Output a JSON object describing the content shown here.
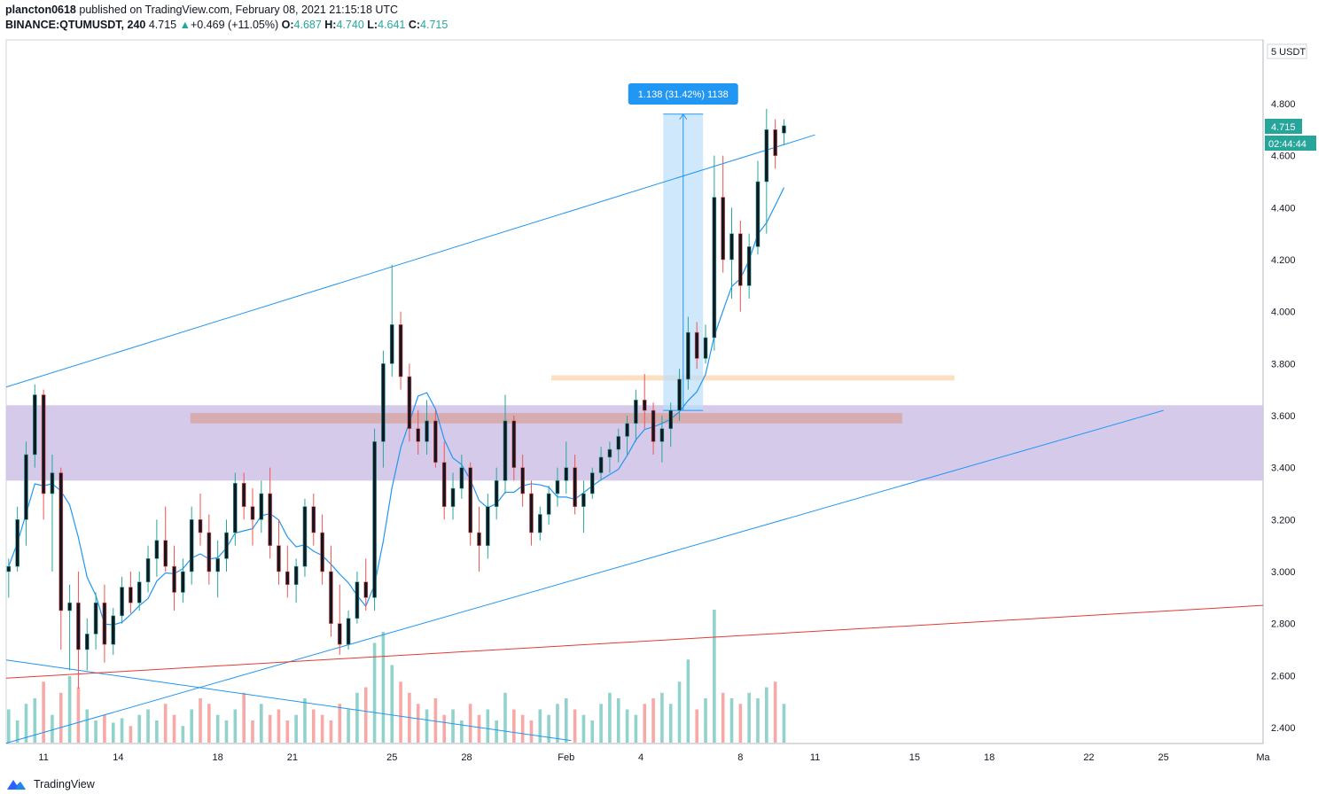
{
  "header": {
    "author": "plancton0618",
    "published_text": "published on TradingView.com, February 08, 2021 21:15:18 UTC",
    "symbol": "BINANCE:QTUMUSDT, 240",
    "last": "4.715",
    "change_arrow": "▲",
    "change": "+0.469 (+11.05%)",
    "o_label": "O:",
    "o_value": "4.687",
    "h_label": "H:",
    "h_value": "4.740",
    "l_label": "L:",
    "l_value": "4.641",
    "c_label": "C:",
    "c_value": "4.715"
  },
  "footer": {
    "brand": "TradingView",
    "logo_icon": "tradingview-logo-icon"
  },
  "colors": {
    "up": "#26a69a",
    "down": "#ef5350",
    "ma": "#2196f3",
    "trendline": "#2196f3",
    "support_line": "#e53935",
    "zone": "#d1c4e9",
    "resistance_band": "#d7a7a7",
    "level_band": "#fbe1c2",
    "measure": "#bbdefb",
    "badge_blue": "#2196f3"
  },
  "chart_data": {
    "type": "candlestick",
    "timeframe": "240",
    "y_axis": {
      "unit_label": "5 USDT",
      "ticks": [
        "4.800",
        "4.600",
        "4.400",
        "4.200",
        "4.000",
        "3.800",
        "3.600",
        "3.400",
        "3.200",
        "3.000",
        "2.800",
        "2.600",
        "2.400"
      ],
      "ylim": [
        2.35,
        5.0
      ]
    },
    "x_axis": {
      "ticks": [
        {
          "label": "11",
          "day": 11
        },
        {
          "label": "14",
          "day": 14
        },
        {
          "label": "18",
          "day": 18
        },
        {
          "label": "21",
          "day": 21
        },
        {
          "label": "25",
          "day": 25
        },
        {
          "label": "28",
          "day": 28
        },
        {
          "label": "Feb",
          "day": 32
        },
        {
          "label": "4",
          "day": 35
        },
        {
          "label": "8",
          "day": 39
        },
        {
          "label": "11",
          "day": 42
        },
        {
          "label": "15",
          "day": 46
        },
        {
          "label": "18",
          "day": 49
        },
        {
          "label": "22",
          "day": 53
        },
        {
          "label": "25",
          "day": 56
        },
        {
          "label": "Ma",
          "day": 60
        }
      ],
      "range_days": [
        9.5,
        60
      ]
    },
    "price_badge": "4.715",
    "countdown_badge": "02:44:44",
    "measure": {
      "label": "1.138 (31.42%) 1138",
      "from_price": 3.62,
      "to_price": 4.76,
      "start_day": 35.9,
      "end_day": 37.5
    },
    "zones": [
      {
        "name": "purple-zone",
        "from": 3.35,
        "to": 3.64,
        "start_day": 9.5,
        "end_day": 60
      },
      {
        "name": "red-band",
        "from": 3.57,
        "to": 3.61,
        "start_day": 16.9,
        "end_day": 45.5
      },
      {
        "name": "orange-band",
        "from": 3.735,
        "to": 3.755,
        "start_day": 31.4,
        "end_day": 47.6
      }
    ],
    "trendlines": [
      {
        "name": "upper-channel",
        "color_key": "trendline",
        "p1": [
          9.5,
          3.71
        ],
        "p2": [
          42.0,
          4.68
        ]
      },
      {
        "name": "lower-channel",
        "color_key": "trendline",
        "p1": [
          9.5,
          2.34
        ],
        "p2": [
          56.0,
          3.62
        ]
      },
      {
        "name": "descending-line",
        "color_key": "trendline",
        "p1": [
          9.5,
          2.66
        ],
        "p2": [
          32.2,
          2.35
        ]
      },
      {
        "name": "support-line",
        "color_key": "support_line",
        "p1": [
          9.5,
          2.59
        ],
        "p2": [
          60.0,
          2.87
        ]
      }
    ],
    "candles": [
      [
        3.0,
        3.05,
        2.9,
        3.02
      ],
      [
        3.02,
        3.25,
        3.0,
        3.2
      ],
      [
        3.2,
        3.5,
        3.1,
        3.45
      ],
      [
        3.45,
        3.72,
        3.4,
        3.68
      ],
      [
        3.68,
        3.7,
        3.2,
        3.3
      ],
      [
        3.3,
        3.45,
        3.0,
        3.38
      ],
      [
        3.38,
        3.4,
        2.7,
        2.85
      ],
      [
        2.85,
        2.95,
        2.62,
        2.88
      ],
      [
        2.88,
        3.0,
        2.55,
        2.7
      ],
      [
        2.7,
        2.82,
        2.62,
        2.76
      ],
      [
        2.76,
        2.92,
        2.7,
        2.88
      ],
      [
        2.88,
        2.95,
        2.65,
        2.72
      ],
      [
        2.72,
        2.86,
        2.68,
        2.83
      ],
      [
        2.83,
        2.98,
        2.8,
        2.94
      ],
      [
        2.94,
        3.0,
        2.84,
        2.88
      ],
      [
        2.88,
        3.0,
        2.85,
        2.96
      ],
      [
        2.96,
        3.1,
        2.92,
        3.05
      ],
      [
        3.05,
        3.2,
        2.98,
        3.12
      ],
      [
        3.12,
        3.25,
        3.0,
        3.02
      ],
      [
        3.02,
        3.1,
        2.85,
        2.92
      ],
      [
        2.92,
        3.05,
        2.88,
        3.0
      ],
      [
        3.0,
        3.25,
        2.95,
        3.2
      ],
      [
        3.2,
        3.3,
        3.1,
        3.15
      ],
      [
        3.15,
        3.22,
        2.95,
        3.0
      ],
      [
        3.0,
        3.12,
        2.9,
        3.05
      ],
      [
        3.05,
        3.2,
        3.0,
        3.15
      ],
      [
        3.15,
        3.38,
        3.1,
        3.34
      ],
      [
        3.34,
        3.38,
        3.2,
        3.25
      ],
      [
        3.25,
        3.32,
        3.1,
        3.2
      ],
      [
        3.2,
        3.35,
        3.15,
        3.3
      ],
      [
        3.3,
        3.4,
        3.05,
        3.1
      ],
      [
        3.1,
        3.2,
        2.95,
        3.0
      ],
      [
        3.0,
        3.1,
        2.9,
        2.95
      ],
      [
        2.95,
        3.05,
        2.88,
        3.02
      ],
      [
        3.02,
        3.28,
        2.98,
        3.25
      ],
      [
        3.25,
        3.3,
        3.1,
        3.15
      ],
      [
        3.15,
        3.22,
        2.95,
        3.0
      ],
      [
        3.0,
        3.1,
        2.75,
        2.8
      ],
      [
        2.8,
        2.95,
        2.68,
        2.72
      ],
      [
        2.72,
        2.85,
        2.7,
        2.82
      ],
      [
        2.82,
        3.0,
        2.8,
        2.96
      ],
      [
        2.96,
        3.05,
        2.85,
        2.9
      ],
      [
        2.9,
        3.55,
        2.85,
        3.5
      ],
      [
        3.5,
        3.85,
        3.4,
        3.8
      ],
      [
        3.8,
        4.18,
        3.75,
        3.95
      ],
      [
        3.95,
        4.0,
        3.7,
        3.75
      ],
      [
        3.75,
        3.8,
        3.5,
        3.55
      ],
      [
        3.55,
        3.62,
        3.45,
        3.5
      ],
      [
        3.5,
        3.66,
        3.45,
        3.58
      ],
      [
        3.58,
        3.62,
        3.4,
        3.42
      ],
      [
        3.42,
        3.5,
        3.2,
        3.25
      ],
      [
        3.25,
        3.38,
        3.2,
        3.32
      ],
      [
        3.32,
        3.45,
        3.28,
        3.4
      ],
      [
        3.4,
        3.42,
        3.1,
        3.15
      ],
      [
        3.15,
        3.25,
        3.0,
        3.1
      ],
      [
        3.1,
        3.3,
        3.05,
        3.25
      ],
      [
        3.25,
        3.4,
        3.2,
        3.35
      ],
      [
        3.35,
        3.68,
        3.3,
        3.58
      ],
      [
        3.58,
        3.6,
        3.35,
        3.4
      ],
      [
        3.4,
        3.45,
        3.25,
        3.3
      ],
      [
        3.3,
        3.35,
        3.1,
        3.15
      ],
      [
        3.15,
        3.25,
        3.12,
        3.22
      ],
      [
        3.22,
        3.33,
        3.18,
        3.3
      ],
      [
        3.3,
        3.4,
        3.25,
        3.35
      ],
      [
        3.35,
        3.5,
        3.3,
        3.4
      ],
      [
        3.4,
        3.45,
        3.22,
        3.25
      ],
      [
        3.25,
        3.35,
        3.15,
        3.3
      ],
      [
        3.3,
        3.4,
        3.28,
        3.38
      ],
      [
        3.38,
        3.48,
        3.35,
        3.44
      ],
      [
        3.44,
        3.5,
        3.38,
        3.47
      ],
      [
        3.47,
        3.55,
        3.42,
        3.52
      ],
      [
        3.52,
        3.6,
        3.45,
        3.57
      ],
      [
        3.57,
        3.7,
        3.5,
        3.66
      ],
      [
        3.66,
        3.76,
        3.55,
        3.62
      ],
      [
        3.62,
        3.65,
        3.45,
        3.5
      ],
      [
        3.5,
        3.6,
        3.42,
        3.55
      ],
      [
        3.55,
        3.65,
        3.48,
        3.62
      ],
      [
        3.62,
        3.78,
        3.58,
        3.74
      ],
      [
        3.74,
        3.98,
        3.7,
        3.92
      ],
      [
        3.92,
        3.96,
        3.78,
        3.82
      ],
      [
        3.82,
        3.95,
        3.8,
        3.9
      ],
      [
        3.9,
        4.6,
        3.85,
        4.44
      ],
      [
        4.44,
        4.6,
        4.15,
        4.2
      ],
      [
        4.2,
        4.4,
        4.05,
        4.3
      ],
      [
        4.3,
        4.35,
        4.0,
        4.1
      ],
      [
        4.1,
        4.3,
        4.05,
        4.25
      ],
      [
        4.25,
        4.58,
        4.22,
        4.5
      ],
      [
        4.5,
        4.78,
        4.3,
        4.7
      ],
      [
        4.7,
        4.74,
        4.55,
        4.6
      ],
      [
        4.687,
        4.74,
        4.641,
        4.715
      ]
    ],
    "candle_time": {
      "first_day": 9.6,
      "step_days": 0.35
    },
    "volume_scale": 100,
    "volumes": [
      30,
      20,
      35,
      40,
      55,
      25,
      45,
      60,
      50,
      30,
      20,
      25,
      18,
      22,
      15,
      25,
      30,
      20,
      35,
      25,
      15,
      30,
      40,
      35,
      25,
      20,
      30,
      45,
      20,
      35,
      25,
      30,
      20,
      25,
      40,
      30,
      25,
      20,
      35,
      30,
      45,
      50,
      90,
      100,
      70,
      55,
      45,
      35,
      30,
      40,
      25,
      30,
      20,
      35,
      25,
      30,
      20,
      45,
      30,
      25,
      20,
      30,
      25,
      35,
      40,
      30,
      25,
      20,
      35,
      45,
      40,
      30,
      25,
      35,
      40,
      45,
      35,
      55,
      75,
      30,
      40,
      120,
      45,
      40,
      35,
      45,
      40,
      50,
      55,
      35
    ]
  }
}
